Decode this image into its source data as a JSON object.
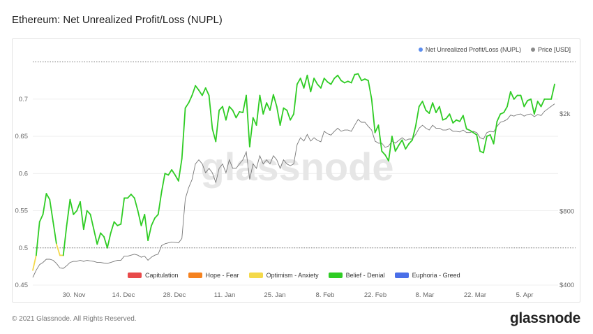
{
  "title": "Ethereum: Net Unrealized Profit/Loss (NUPL)",
  "watermark": "glassnode",
  "footer": {
    "copyright": "© 2021 Glassnode. All Rights Reserved.",
    "logo": "glassnode"
  },
  "legend_top": [
    {
      "label": "Net Unrealized Profit/Loss (NUPL)",
      "color": "#5b8def"
    },
    {
      "label": "Price [USD]",
      "color": "#8a8a8a"
    }
  ],
  "legend_zones": [
    {
      "label": "Capitulation",
      "color": "#e84a4a"
    },
    {
      "label": "Hope - Fear",
      "color": "#f5821f"
    },
    {
      "label": "Optimism - Anxiety",
      "color": "#f4d94a"
    },
    {
      "label": "Belief - Denial",
      "color": "#2fcc24"
    },
    {
      "label": "Euphoria - Greed",
      "color": "#4a6fe8"
    }
  ],
  "chart_data": {
    "type": "line",
    "title": "Ethereum: Net Unrealized Profit/Loss (NUPL)",
    "x_ticks": [
      "30. Nov",
      "14. Dec",
      "28. Dec",
      "11. Jan",
      "25. Jan",
      "8. Feb",
      "22. Feb",
      "8. Mar",
      "22. Mar",
      "5. Apr"
    ],
    "y_left_ticks": [
      0.45,
      0.5,
      0.55,
      0.6,
      0.65,
      0.7
    ],
    "y_left_range": [
      0.45,
      0.76
    ],
    "y_right_ticks": [
      "$400",
      "$800",
      "$2k"
    ],
    "y_right_log": true,
    "y_right_range": [
      400,
      3500
    ],
    "reference_lines": [
      0.5,
      0.75
    ],
    "series": [
      {
        "name": "Net Unrealized Profit/Loss (NUPL)",
        "axis": "left",
        "zone_colors": {
          "below_0.5": "#f4d94a",
          "0.5_to_0.75": "#2fcc24"
        },
        "values": [
          0.47,
          0.49,
          0.535,
          0.545,
          0.573,
          0.565,
          0.535,
          0.505,
          0.49,
          0.49,
          0.53,
          0.565,
          0.545,
          0.55,
          0.562,
          0.525,
          0.55,
          0.545,
          0.525,
          0.505,
          0.52,
          0.515,
          0.5,
          0.52,
          0.535,
          0.53,
          0.532,
          0.567,
          0.567,
          0.572,
          0.567,
          0.55,
          0.53,
          0.545,
          0.51,
          0.53,
          0.54,
          0.545,
          0.575,
          0.6,
          0.598,
          0.605,
          0.598,
          0.59,
          0.62,
          0.688,
          0.695,
          0.705,
          0.718,
          0.712,
          0.705,
          0.715,
          0.705,
          0.66,
          0.643,
          0.685,
          0.69,
          0.672,
          0.69,
          0.685,
          0.675,
          0.683,
          0.682,
          0.705,
          0.636,
          0.675,
          0.665,
          0.705,
          0.68,
          0.695,
          0.685,
          0.706,
          0.69,
          0.665,
          0.688,
          0.685,
          0.672,
          0.68,
          0.72,
          0.728,
          0.715,
          0.732,
          0.71,
          0.728,
          0.72,
          0.715,
          0.728,
          0.723,
          0.72,
          0.728,
          0.732,
          0.725,
          0.722,
          0.724,
          0.722,
          0.733,
          0.734,
          0.725,
          0.727,
          0.725,
          0.7,
          0.655,
          0.665,
          0.63,
          0.625,
          0.617,
          0.65,
          0.63,
          0.638,
          0.645,
          0.633,
          0.64,
          0.645,
          0.664,
          0.69,
          0.697,
          0.685,
          0.681,
          0.695,
          0.682,
          0.69,
          0.672,
          0.674,
          0.68,
          0.668,
          0.672,
          0.67,
          0.678,
          0.66,
          0.658,
          0.655,
          0.652,
          0.63,
          0.628,
          0.65,
          0.652,
          0.64,
          0.67,
          0.68,
          0.682,
          0.69,
          0.71,
          0.7,
          0.705,
          0.705,
          0.69,
          0.698,
          0.7,
          0.68,
          0.697,
          0.69,
          0.7,
          0.7,
          0.7,
          0.72
        ]
      },
      {
        "name": "Price [USD]",
        "axis": "right",
        "values": [
          430,
          460,
          485,
          495,
          510,
          510,
          505,
          490,
          470,
          468,
          480,
          495,
          500,
          500,
          505,
          500,
          505,
          502,
          500,
          495,
          495,
          492,
          490,
          495,
          500,
          505,
          505,
          525,
          525,
          530,
          535,
          530,
          520,
          525,
          505,
          520,
          530,
          535,
          580,
          590,
          595,
          600,
          598,
          595,
          620,
          900,
          1000,
          1080,
          1250,
          1300,
          1250,
          1150,
          1200,
          1150,
          1050,
          1200,
          1250,
          1150,
          1300,
          1200,
          1200,
          1250,
          1300,
          1400,
          1080,
          1250,
          1200,
          1350,
          1250,
          1300,
          1250,
          1350,
          1300,
          1200,
          1300,
          1250,
          1230,
          1250,
          1500,
          1600,
          1550,
          1650,
          1550,
          1600,
          1560,
          1540,
          1700,
          1660,
          1640,
          1700,
          1750,
          1700,
          1720,
          1720,
          1700,
          1800,
          1900,
          1850,
          1850,
          1780,
          1720,
          1550,
          1520,
          1520,
          1460,
          1480,
          1550,
          1520,
          1560,
          1600,
          1560,
          1580,
          1580,
          1650,
          1750,
          1800,
          1750,
          1720,
          1800,
          1750,
          1750,
          1720,
          1720,
          1740,
          1700,
          1700,
          1690,
          1720,
          1680,
          1680,
          1700,
          1680,
          1600,
          1580,
          1680,
          1700,
          1690,
          1780,
          1850,
          1870,
          1900,
          1980,
          1960,
          1990,
          2000,
          1960,
          1990,
          2000,
          1950,
          1990,
          1970,
          2050,
          2100,
          2150,
          2200
        ]
      }
    ]
  }
}
